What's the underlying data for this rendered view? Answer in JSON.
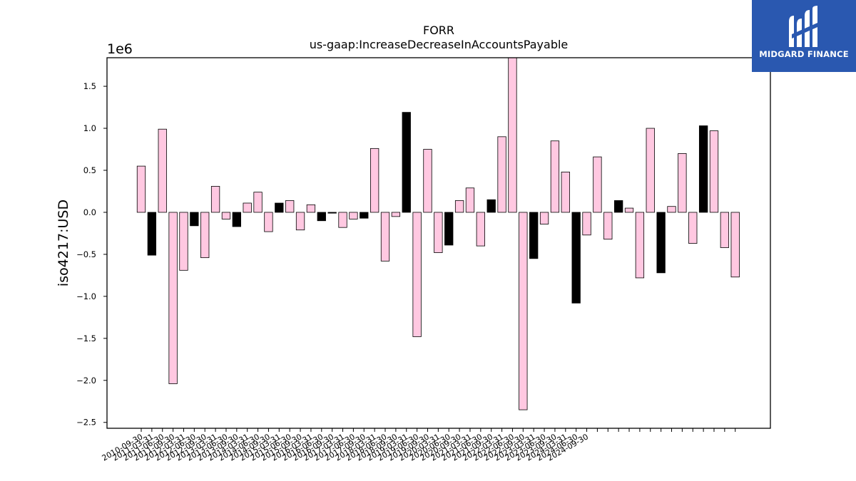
{
  "chart_data": {
    "type": "bar",
    "title": "FORR",
    "subtitle": "us-gaap:IncreaseDecreaseInAccountsPayable",
    "ylabel": "iso4217:USD",
    "xlabel": "",
    "y_multiplier_label": "1e6",
    "ylim": [
      -2.57,
      1.84
    ],
    "y_ticks": [
      1.5,
      1.0,
      0.5,
      0.0,
      -0.5,
      -1.0,
      -1.5,
      -2.0,
      -2.5
    ],
    "y_tick_labels": [
      "1.5",
      "1.0",
      "0.5",
      "0.0",
      "−0.5",
      "−1.0",
      "−1.5",
      "−2.0",
      "−2.5"
    ],
    "grid": false,
    "colors": {
      "pink": "#ffc8e1",
      "black": "#000000"
    },
    "bars": [
      {
        "label": "2010-09-30",
        "value": 0.55,
        "color": "pink"
      },
      {
        "label": "2011-03-31",
        "value": -0.51,
        "color": "black"
      },
      {
        "label": "2011-06-30",
        "value": 0.99,
        "color": "pink"
      },
      {
        "label": "2011-09-30",
        "value": -2.04,
        "color": "pink"
      },
      {
        "label": "2012-03-31",
        "value": -0.69,
        "color": "pink"
      },
      {
        "label": "2012-06-30",
        "value": -0.16,
        "color": "black"
      },
      {
        "label": "2012-09-30",
        "value": -0.54,
        "color": "pink"
      },
      {
        "label": "2013-03-31",
        "value": 0.31,
        "color": "pink"
      },
      {
        "label": "2013-06-30",
        "value": -0.08,
        "color": "pink"
      },
      {
        "label": "2013-09-30",
        "value": -0.17,
        "color": "black"
      },
      {
        "label": "2014-03-31",
        "value": 0.11,
        "color": "pink"
      },
      {
        "label": "2014-06-30",
        "value": 0.24,
        "color": "pink"
      },
      {
        "label": "2014-09-30",
        "value": -0.23,
        "color": "pink"
      },
      {
        "label": "2015-03-31",
        "value": 0.11,
        "color": "black"
      },
      {
        "label": "2015-06-30",
        "value": 0.14,
        "color": "pink"
      },
      {
        "label": "2015-09-30",
        "value": -0.21,
        "color": "pink"
      },
      {
        "label": "2016-03-31",
        "value": 0.09,
        "color": "pink"
      },
      {
        "label": "2016-06-30",
        "value": -0.1,
        "color": "black"
      },
      {
        "label": "2016-09-30",
        "value": -0.01,
        "color": "black"
      },
      {
        "label": "2017-03-31",
        "value": -0.18,
        "color": "pink"
      },
      {
        "label": "2017-06-30",
        "value": -0.08,
        "color": "pink"
      },
      {
        "label": "2017-09-30",
        "value": -0.07,
        "color": "black"
      },
      {
        "label": "2018-03-31",
        "value": 0.76,
        "color": "pink"
      },
      {
        "label": "2018-06-30",
        "value": -0.58,
        "color": "pink"
      },
      {
        "label": "2018-09-30",
        "value": -0.05,
        "color": "pink"
      },
      {
        "label": "2019-03-31",
        "value": 1.19,
        "color": "black"
      },
      {
        "label": "2019-06-30",
        "value": -1.48,
        "color": "pink"
      },
      {
        "label": "2019-09-30",
        "value": 0.75,
        "color": "pink"
      },
      {
        "label": "2020-03-31",
        "value": -0.48,
        "color": "pink"
      },
      {
        "label": "2020-06-30",
        "value": -0.39,
        "color": "black"
      },
      {
        "label": "2020-09-30",
        "value": 0.14,
        "color": "pink"
      },
      {
        "label": "2021-03-31",
        "value": 0.29,
        "color": "pink"
      },
      {
        "label": "2021-06-30",
        "value": -0.4,
        "color": "pink"
      },
      {
        "label": "2021-09-30",
        "value": 0.15,
        "color": "black"
      },
      {
        "label": "2022-03-31",
        "value": 0.9,
        "color": "pink"
      },
      {
        "label": "2022-06-30",
        "value": 1.85,
        "color": "pink"
      },
      {
        "label": "2022-09-30",
        "value": -2.35,
        "color": "pink"
      },
      {
        "label": "2023-03-31",
        "value": -0.55,
        "color": "black"
      },
      {
        "label": "2023-06-30",
        "value": -0.14,
        "color": "pink"
      },
      {
        "label": "2023-09-30",
        "value": 0.85,
        "color": "pink"
      },
      {
        "label": "2024-03-31",
        "value": 0.48,
        "color": "pink"
      },
      {
        "label": "2024-06-30",
        "value": -1.08,
        "color": "black"
      },
      {
        "label": "2024-09-30",
        "value": -0.27,
        "color": "pink"
      },
      {
        "label": "",
        "value": 0.66,
        "color": "pink"
      },
      {
        "label": "",
        "value": -0.32,
        "color": "pink"
      },
      {
        "label": "",
        "value": 0.14,
        "color": "black"
      },
      {
        "label": "",
        "value": 0.05,
        "color": "pink"
      },
      {
        "label": "",
        "value": -0.78,
        "color": "pink"
      },
      {
        "label": "",
        "value": 1.0,
        "color": "pink"
      },
      {
        "label": "",
        "value": -0.72,
        "color": "black"
      },
      {
        "label": "",
        "value": 0.07,
        "color": "pink"
      },
      {
        "label": "",
        "value": 0.7,
        "color": "pink"
      },
      {
        "label": "",
        "value": -0.37,
        "color": "pink"
      },
      {
        "label": "",
        "value": 1.03,
        "color": "black"
      },
      {
        "label": "",
        "value": 0.97,
        "color": "pink"
      },
      {
        "label": "",
        "value": -0.42,
        "color": "pink"
      },
      {
        "label": "",
        "value": -0.77,
        "color": "pink"
      }
    ]
  },
  "logo": {
    "text": "MIDGARD FINANCE",
    "icon": "midgard-logo-icon",
    "background": "#2a58b0"
  }
}
